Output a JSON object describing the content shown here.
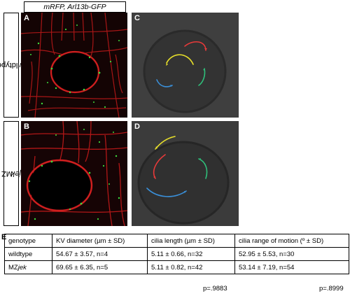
{
  "figure": {
    "stain_label": "mRFP, Arl13b-GFP",
    "rows": [
      {
        "label": "wildtype",
        "label_suffix": ""
      },
      {
        "label": "MZ",
        "label_suffix": "jek"
      }
    ],
    "panels": [
      "A",
      "B",
      "C",
      "D"
    ],
    "section_label": "E"
  },
  "table": {
    "headers": [
      "genotype",
      "KV diameter (µm ± SD)",
      "cilia length (µm ± SD)",
      "cilia range of motion (º ± SD)"
    ],
    "rows": [
      {
        "genotype": "wildtype",
        "genotype_suffix": "",
        "kv": "54.67 ± 3.57, n=4",
        "length": "5.11 ± 0.66, n=32",
        "motion": "52.95 ± 5.53, n=30"
      },
      {
        "genotype": "MZ",
        "genotype_suffix": "jek",
        "kv": "69.65 ± 6.35, n=5",
        "length": "5.11 ± 0.82, n=42",
        "motion": "53.14 ± 7.19, n=54"
      }
    ],
    "p_values": [
      "p=.9883",
      "p=.8999"
    ]
  },
  "colors": {
    "membrane_red": "#d11f1f",
    "cilia_green": "#3ddc3d",
    "trace_red": "#e83a3a",
    "trace_yellow": "#e8e02a",
    "trace_blue": "#3a8fd8",
    "trace_green": "#2fbf7a"
  }
}
